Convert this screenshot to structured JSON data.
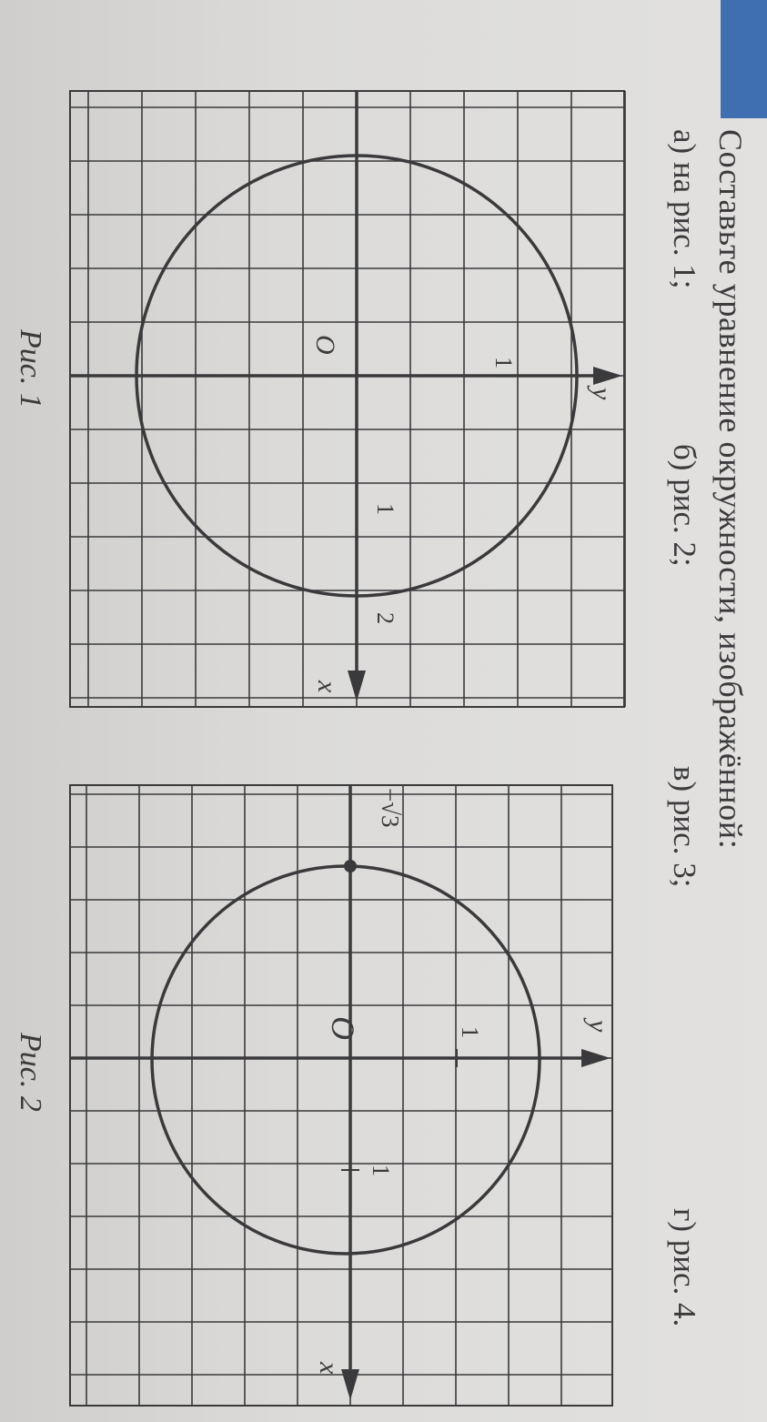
{
  "header": {
    "task": "Составьте уравнение окружности, изображённой:",
    "items": [
      {
        "label": "а) на рис. 1;"
      },
      {
        "label": "б) рис. 2;"
      },
      {
        "label": "в) рис. 3;"
      },
      {
        "label": "г) рис. 4."
      }
    ],
    "badge_color": "#3f6fb0"
  },
  "figures": [
    {
      "caption": "Рис. 1",
      "x_axis_label": "x",
      "y_axis_label": "y",
      "origin_label": "O",
      "x_tick_labels": [
        "1",
        "2"
      ],
      "y_tick_labels": [
        "1"
      ]
    },
    {
      "caption": "Рис. 2",
      "x_axis_label": "x",
      "y_axis_label": "y",
      "origin_label": "O",
      "x_tick_labels": [
        "1"
      ],
      "y_tick_labels": [
        "1"
      ],
      "marked_point_label": "−√3"
    }
  ]
}
